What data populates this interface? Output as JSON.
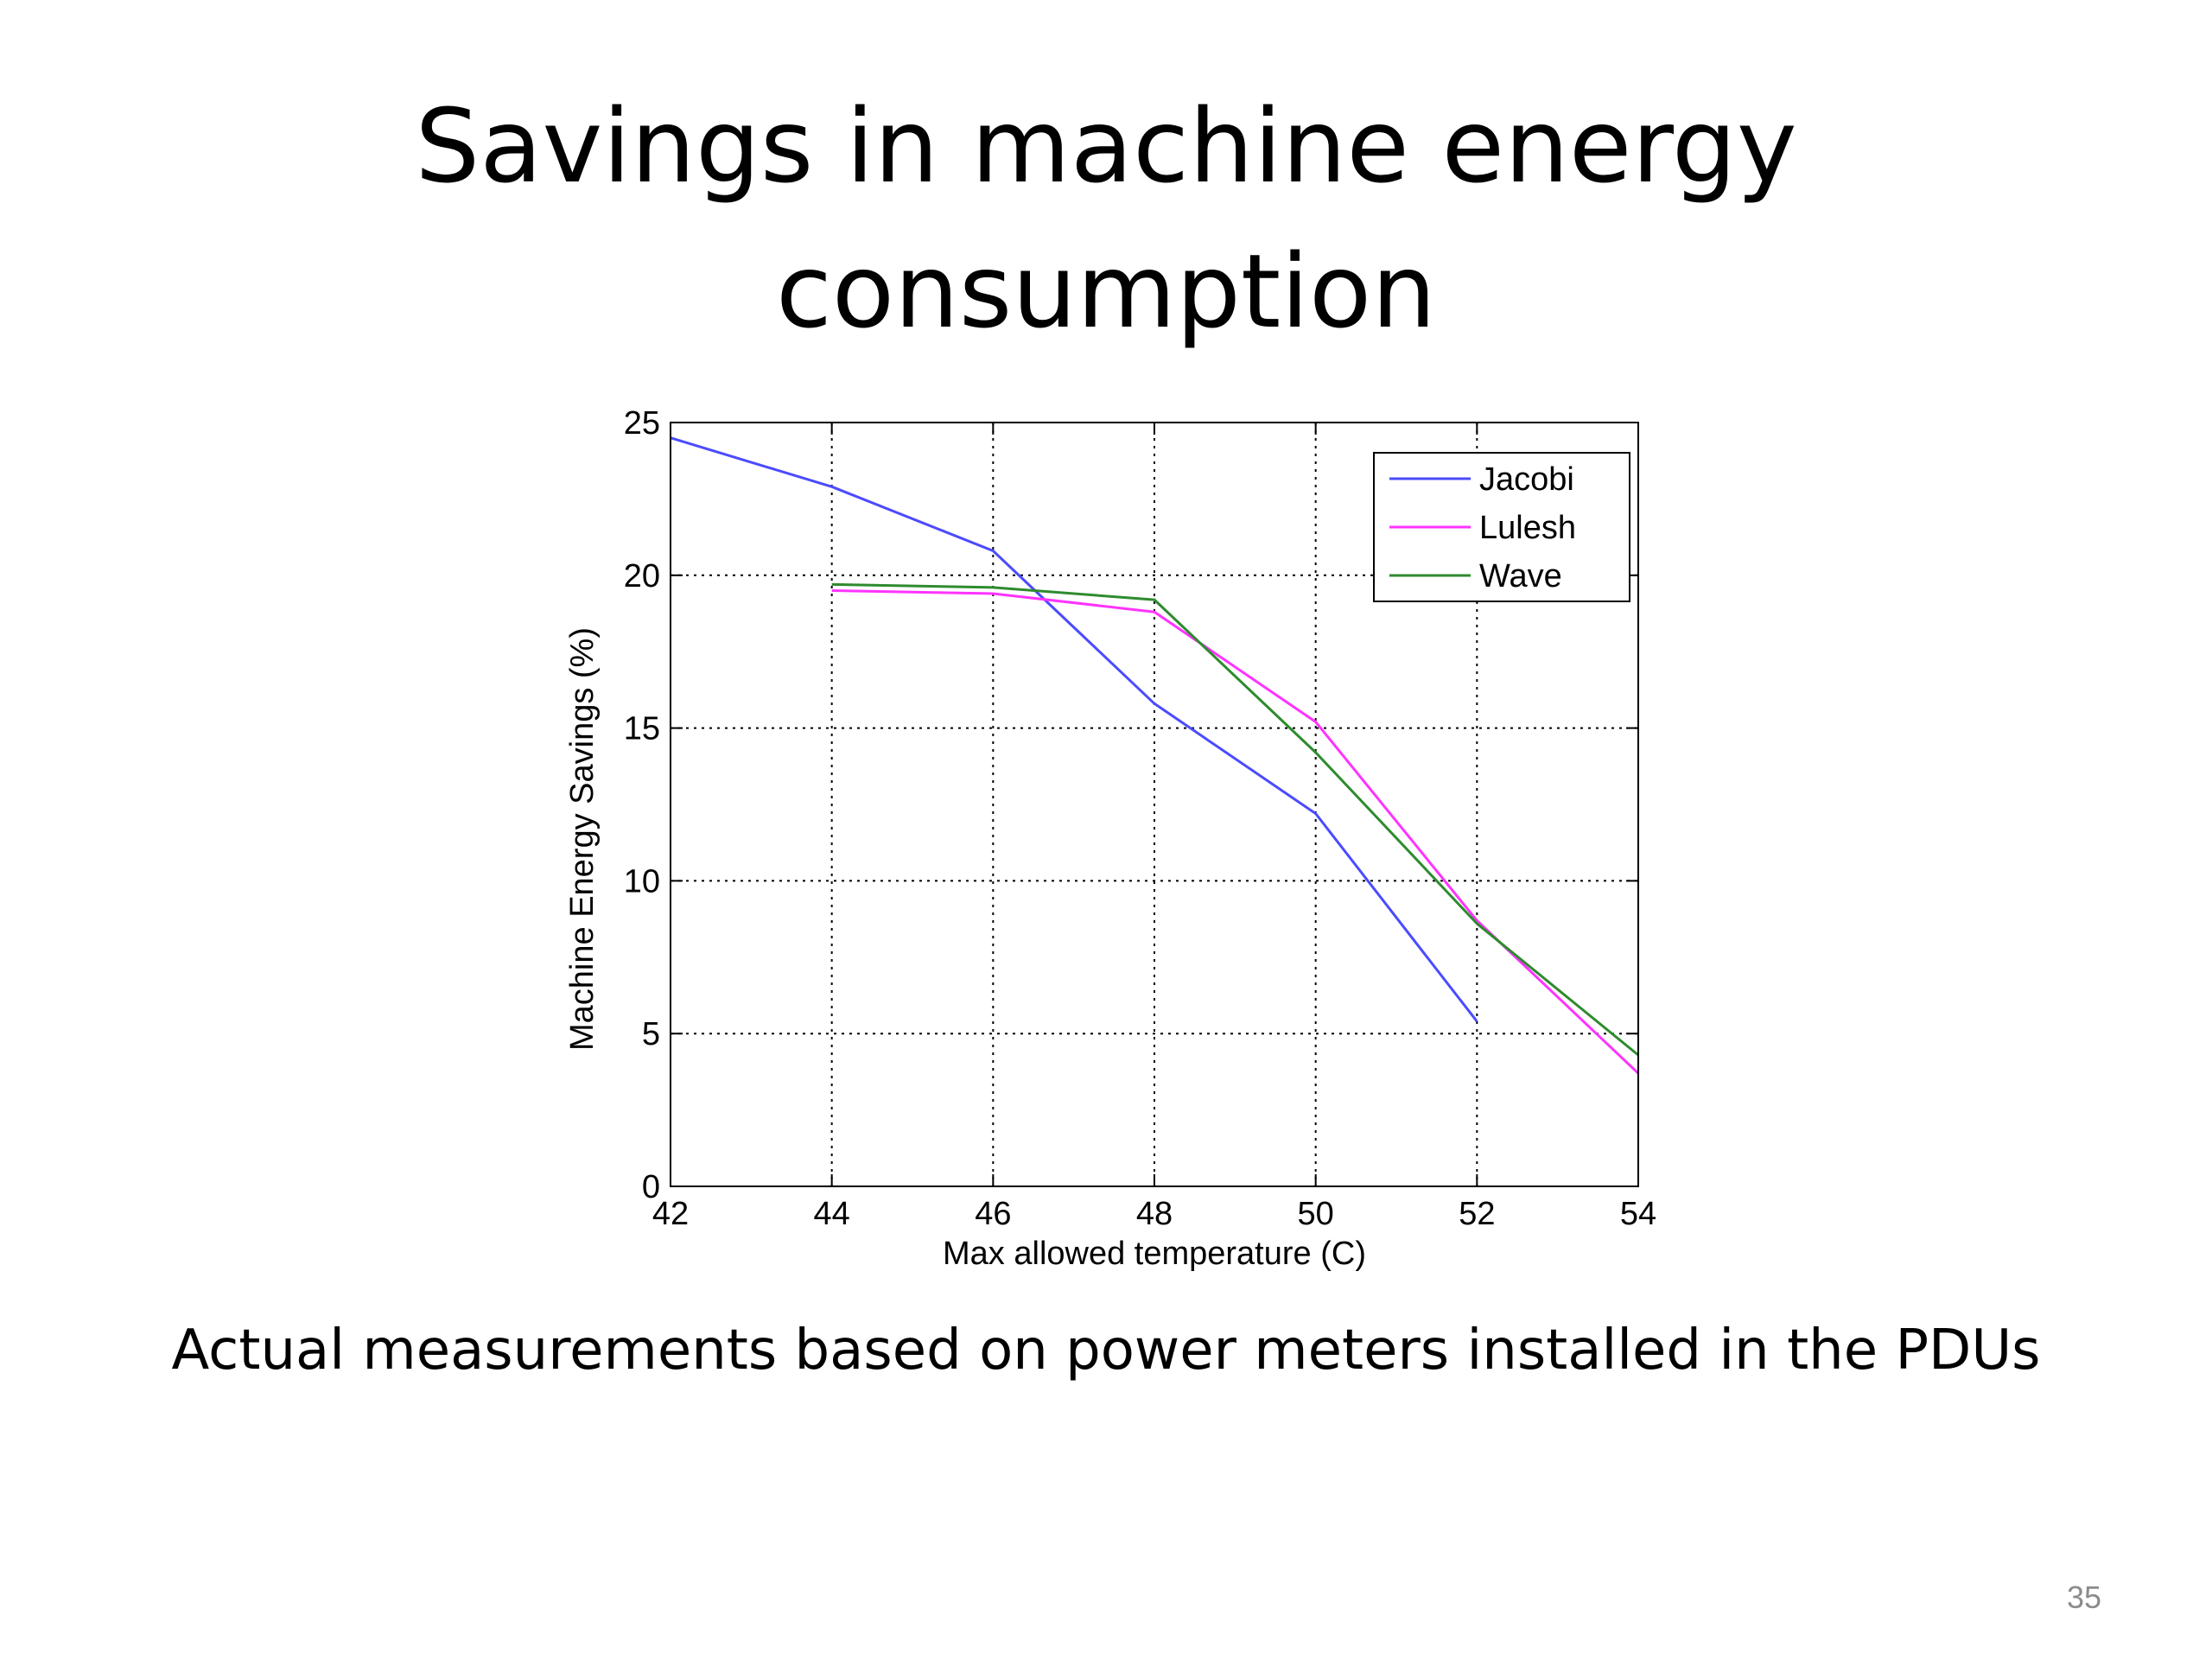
{
  "slide": {
    "title_lines": [
      "Savings in machine energy",
      "consumption"
    ],
    "caption": "Actual measurements based on power meters installed in the PDUs",
    "page_number": "35"
  },
  "chart_data": {
    "type": "line",
    "title": "",
    "xlabel": "Max allowed temperature (C)",
    "ylabel": "Machine Energy Savings (%)",
    "xlim": [
      42,
      54
    ],
    "ylim": [
      0,
      25
    ],
    "xticks": [
      42,
      44,
      46,
      48,
      50,
      52,
      54
    ],
    "yticks": [
      0,
      5,
      10,
      15,
      20,
      25
    ],
    "grid": true,
    "legend_position": "top-right",
    "series": [
      {
        "name": "Jacobi",
        "color": "#4b4bff",
        "x": [
          42,
          44,
          46,
          48,
          50,
          52
        ],
        "y": [
          24.5,
          22.9,
          20.8,
          15.8,
          12.2,
          5.4
        ]
      },
      {
        "name": "Lulesh",
        "color": "#ff33ff",
        "x": [
          44,
          46,
          48,
          50,
          52,
          54
        ],
        "y": [
          19.5,
          19.4,
          18.8,
          15.2,
          8.7,
          3.7
        ]
      },
      {
        "name": "Wave",
        "color": "#2e8b2e",
        "x": [
          44,
          46,
          48,
          50,
          52,
          54
        ],
        "y": [
          19.7,
          19.6,
          19.2,
          14.2,
          8.6,
          4.3
        ]
      }
    ]
  }
}
